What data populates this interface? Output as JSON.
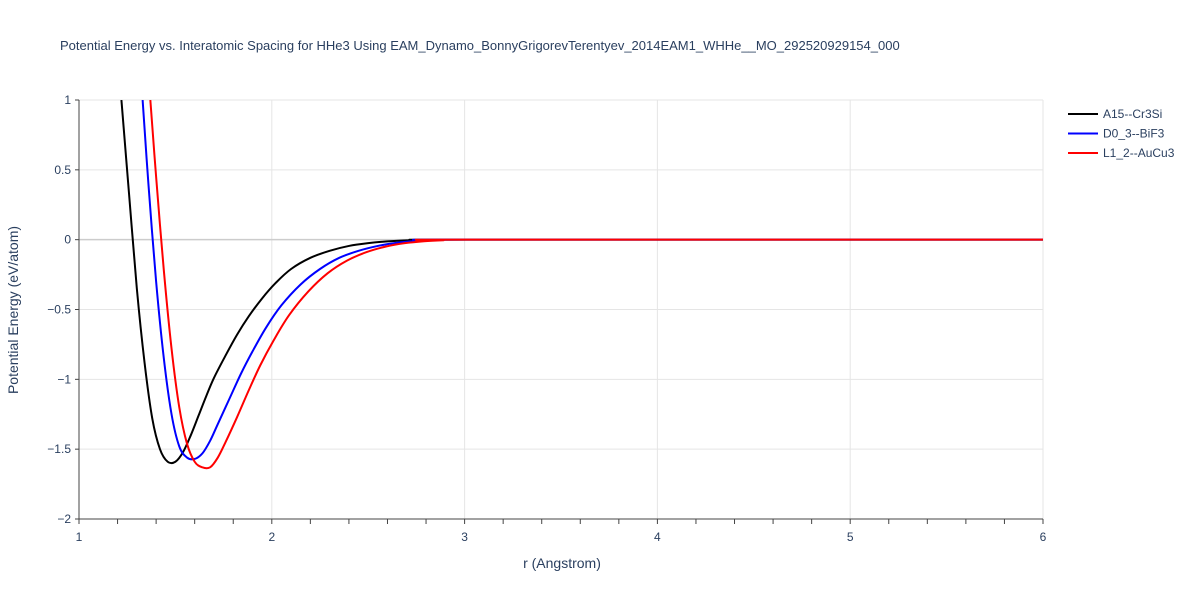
{
  "chart_data": {
    "type": "line",
    "title": "Potential Energy vs. Interatomic Spacing for HHe3 Using EAM_Dynamo_BonnyGrigorevTerentyev_2014EAM1_WHHe__MO_292520929154_000",
    "xlabel": "r (Angstrom)",
    "ylabel": "Potential Energy (eV/atom)",
    "xlim": [
      1,
      6
    ],
    "ylim": [
      -2,
      1
    ],
    "xticks": [
      1,
      2,
      3,
      4,
      5,
      6
    ],
    "xtick_labels": [
      "1",
      "2",
      "3",
      "4",
      "5",
      "6"
    ],
    "yticks": [
      1,
      0.5,
      0,
      -0.5,
      -1,
      -1.5,
      -2
    ],
    "ytick_labels": [
      "1",
      "0.5",
      "0",
      "−0.5",
      "−1",
      "−1.5",
      "−2"
    ],
    "grid": true,
    "legend_position": "top-right",
    "series": [
      {
        "name": "A15--Cr3Si",
        "color": "#000000",
        "x": [
          1.22,
          1.26,
          1.3,
          1.34,
          1.38,
          1.42,
          1.46,
          1.5,
          1.54,
          1.58,
          1.62,
          1.66,
          1.7,
          1.76,
          1.82,
          1.88,
          1.95,
          2.02,
          2.1,
          2.2,
          2.3,
          2.4,
          2.5,
          2.6,
          2.7,
          2.8,
          3.0,
          6.0
        ],
        "y": [
          1.0,
          0.32,
          -0.35,
          -0.88,
          -1.28,
          -1.5,
          -1.59,
          -1.59,
          -1.52,
          -1.4,
          -1.26,
          -1.12,
          -0.99,
          -0.83,
          -0.68,
          -0.55,
          -0.42,
          -0.31,
          -0.21,
          -0.13,
          -0.08,
          -0.045,
          -0.025,
          -0.012,
          -0.005,
          -0.002,
          0.0,
          0.0
        ]
      },
      {
        "name": "D0_3--BiF3",
        "color": "#0000ff",
        "x": [
          1.33,
          1.36,
          1.4,
          1.44,
          1.48,
          1.52,
          1.56,
          1.6,
          1.64,
          1.68,
          1.72,
          1.78,
          1.84,
          1.9,
          1.97,
          2.05,
          2.15,
          2.25,
          2.35,
          2.45,
          2.55,
          2.65,
          2.75,
          2.85,
          3.0,
          6.0
        ],
        "y": [
          1.0,
          0.4,
          -0.3,
          -0.85,
          -1.25,
          -1.48,
          -1.56,
          -1.57,
          -1.53,
          -1.44,
          -1.32,
          -1.14,
          -0.96,
          -0.8,
          -0.63,
          -0.47,
          -0.32,
          -0.21,
          -0.13,
          -0.08,
          -0.045,
          -0.022,
          -0.01,
          -0.004,
          0.0,
          0.0
        ]
      },
      {
        "name": "L1_2--AuCu3",
        "color": "#ff0000",
        "x": [
          1.37,
          1.4,
          1.44,
          1.48,
          1.52,
          1.56,
          1.6,
          1.64,
          1.68,
          1.72,
          1.76,
          1.82,
          1.88,
          1.94,
          2.01,
          2.09,
          2.19,
          2.29,
          2.39,
          2.49,
          2.59,
          2.69,
          2.79,
          2.89,
          3.0,
          6.0
        ],
        "y": [
          1.0,
          0.45,
          -0.22,
          -0.78,
          -1.2,
          -1.46,
          -1.59,
          -1.63,
          -1.63,
          -1.56,
          -1.45,
          -1.27,
          -1.08,
          -0.9,
          -0.72,
          -0.54,
          -0.37,
          -0.24,
          -0.15,
          -0.09,
          -0.05,
          -0.025,
          -0.011,
          -0.004,
          0.0,
          0.0
        ]
      }
    ]
  }
}
